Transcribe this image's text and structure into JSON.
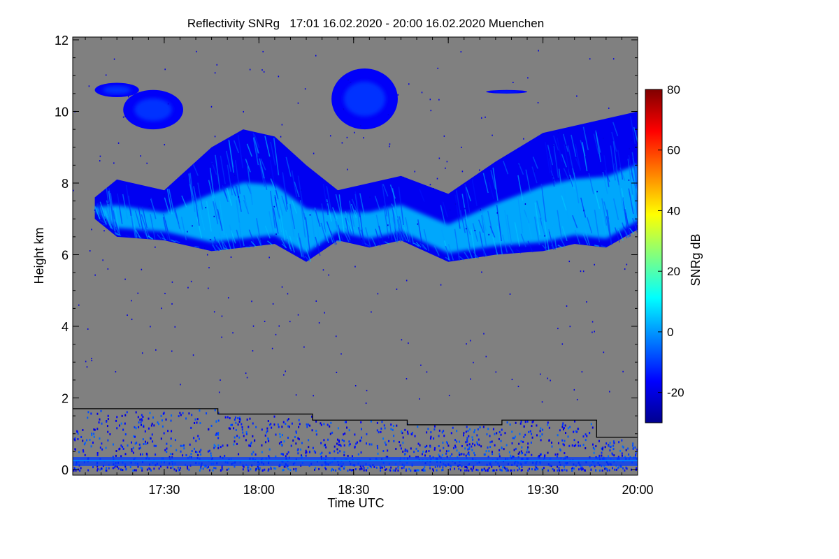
{
  "chart_data": {
    "type": "heatmap",
    "title": "Reflectivity SNRg   17:01 16.02.2020 - 20:00 16.02.2020 Muenchen",
    "xlabel": "Time UTC",
    "ylabel": "Height km",
    "xlim": [
      "17:01",
      "20:00"
    ],
    "ylim": [
      0,
      12
    ],
    "x_ticks": [
      "17:30",
      "18:00",
      "18:30",
      "19:00",
      "19:30",
      "20:00"
    ],
    "y_ticks": [
      0,
      2,
      4,
      6,
      8,
      10,
      12
    ],
    "grid": false,
    "background_color": "#808080",
    "colorbar": {
      "label": "SNRg dB",
      "range": [
        -30,
        80
      ],
      "ticks": [
        -20,
        0,
        20,
        40,
        60,
        80
      ],
      "colormap": [
        "#00008f",
        "#0000ff",
        "#0080ff",
        "#00ffff",
        "#80ff80",
        "#ffff00",
        "#ff8000",
        "#ff0000",
        "#800000"
      ]
    },
    "cloud_layer": {
      "description_units": "km",
      "bottom": [
        {
          "t": "17:08",
          "h": 7.0
        },
        {
          "t": "17:15",
          "h": 6.5
        },
        {
          "t": "17:30",
          "h": 6.4
        },
        {
          "t": "17:45",
          "h": 6.1
        },
        {
          "t": "17:55",
          "h": 6.2
        },
        {
          "t": "18:05",
          "h": 6.3
        },
        {
          "t": "18:15",
          "h": 5.8
        },
        {
          "t": "18:25",
          "h": 6.4
        },
        {
          "t": "18:35",
          "h": 6.2
        },
        {
          "t": "18:45",
          "h": 6.4
        },
        {
          "t": "19:00",
          "h": 5.8
        },
        {
          "t": "19:15",
          "h": 6.0
        },
        {
          "t": "19:30",
          "h": 6.1
        },
        {
          "t": "19:40",
          "h": 6.3
        },
        {
          "t": "19:50",
          "h": 6.2
        },
        {
          "t": "20:00",
          "h": 6.7
        }
      ],
      "top": [
        {
          "t": "17:08",
          "h": 7.6
        },
        {
          "t": "17:15",
          "h": 8.1
        },
        {
          "t": "17:30",
          "h": 7.8
        },
        {
          "t": "17:45",
          "h": 9.0
        },
        {
          "t": "17:55",
          "h": 9.5
        },
        {
          "t": "18:05",
          "h": 9.3
        },
        {
          "t": "18:15",
          "h": 8.5
        },
        {
          "t": "18:25",
          "h": 7.8
        },
        {
          "t": "18:35",
          "h": 8.0
        },
        {
          "t": "18:45",
          "h": 8.2
        },
        {
          "t": "19:00",
          "h": 7.7
        },
        {
          "t": "19:15",
          "h": 8.6
        },
        {
          "t": "19:30",
          "h": 9.4
        },
        {
          "t": "19:40",
          "h": 9.6
        },
        {
          "t": "19:50",
          "h": 9.8
        },
        {
          "t": "20:00",
          "h": 10.0
        }
      ],
      "core_snr_db": 5
    },
    "upper_patches": [
      {
        "t_start": "17:08",
        "t_end": "17:22",
        "h_bottom": 10.4,
        "h_top": 10.8
      },
      {
        "t_start": "17:17",
        "t_end": "17:36",
        "h_bottom": 9.5,
        "h_top": 10.6
      },
      {
        "t_start": "18:23",
        "t_end": "18:44",
        "h_bottom": 9.5,
        "h_top": 11.2
      },
      {
        "t_start": "19:12",
        "t_end": "19:25",
        "h_bottom": 10.5,
        "h_top": 10.6
      }
    ],
    "boundary_layer_line": {
      "units": "km",
      "steps": [
        {
          "t_start": "17:01",
          "t_end": "17:47",
          "h": 1.7
        },
        {
          "t_start": "17:47",
          "t_end": "18:17",
          "h": 1.55
        },
        {
          "t_start": "18:17",
          "t_end": "18:47",
          "h": 1.38
        },
        {
          "t_start": "18:47",
          "t_end": "19:17",
          "h": 1.25
        },
        {
          "t_start": "19:17",
          "t_end": "19:47",
          "h": 1.38
        },
        {
          "t_start": "19:47",
          "t_end": "20:00",
          "h": 0.9
        }
      ]
    },
    "near_surface_band": {
      "h_bottom": 0.1,
      "h_top": 0.35,
      "snr_db": -10
    }
  }
}
